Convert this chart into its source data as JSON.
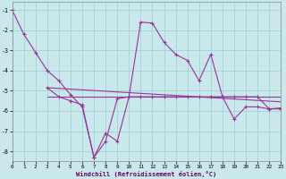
{
  "xlabel": "Windchill (Refroidissement éolien,°C)",
  "background_color": "#c8e8ec",
  "grid_color": "#a0ccd0",
  "line_color": "#993399",
  "xlim": [
    0,
    23
  ],
  "ylim": [
    -8.5,
    -0.6
  ],
  "yticks": [
    -8,
    -7,
    -6,
    -5,
    -4,
    -3,
    -2,
    -1
  ],
  "xticks": [
    0,
    1,
    2,
    3,
    4,
    5,
    6,
    7,
    8,
    9,
    10,
    11,
    12,
    13,
    14,
    15,
    16,
    17,
    18,
    19,
    20,
    21,
    22,
    23
  ],
  "s1_x": [
    0,
    1,
    2,
    3,
    4,
    5,
    6,
    7,
    8,
    9,
    10,
    11,
    12,
    13,
    14,
    15,
    16,
    17,
    18,
    19,
    20,
    21,
    22,
    23
  ],
  "s1_y": [
    -1.0,
    -2.2,
    -3.1,
    -4.0,
    -4.5,
    -5.2,
    -5.8,
    -8.3,
    -7.1,
    -7.5,
    -5.3,
    -1.6,
    -1.65,
    -2.6,
    -3.2,
    -3.5,
    -4.5,
    -3.2,
    -5.3,
    -6.4,
    -5.8,
    -5.8,
    -5.9,
    -5.9
  ],
  "s2_x": [
    3,
    4,
    5,
    6,
    7,
    8,
    9,
    10,
    11,
    12,
    13,
    14,
    15,
    16,
    17,
    18,
    19,
    20,
    21,
    22,
    23
  ],
  "s2_y": [
    -4.85,
    -5.3,
    -5.5,
    -5.7,
    -8.3,
    -7.5,
    -5.4,
    -5.3,
    -5.3,
    -5.3,
    -5.3,
    -5.3,
    -5.3,
    -5.3,
    -5.3,
    -5.3,
    -5.3,
    -5.3,
    -5.3,
    -5.9,
    -5.85
  ],
  "trend1_x": [
    3,
    23
  ],
  "trend1_y": [
    -4.85,
    -5.55
  ],
  "trend2_x": [
    3,
    23
  ],
  "trend2_y": [
    -5.3,
    -5.3
  ]
}
